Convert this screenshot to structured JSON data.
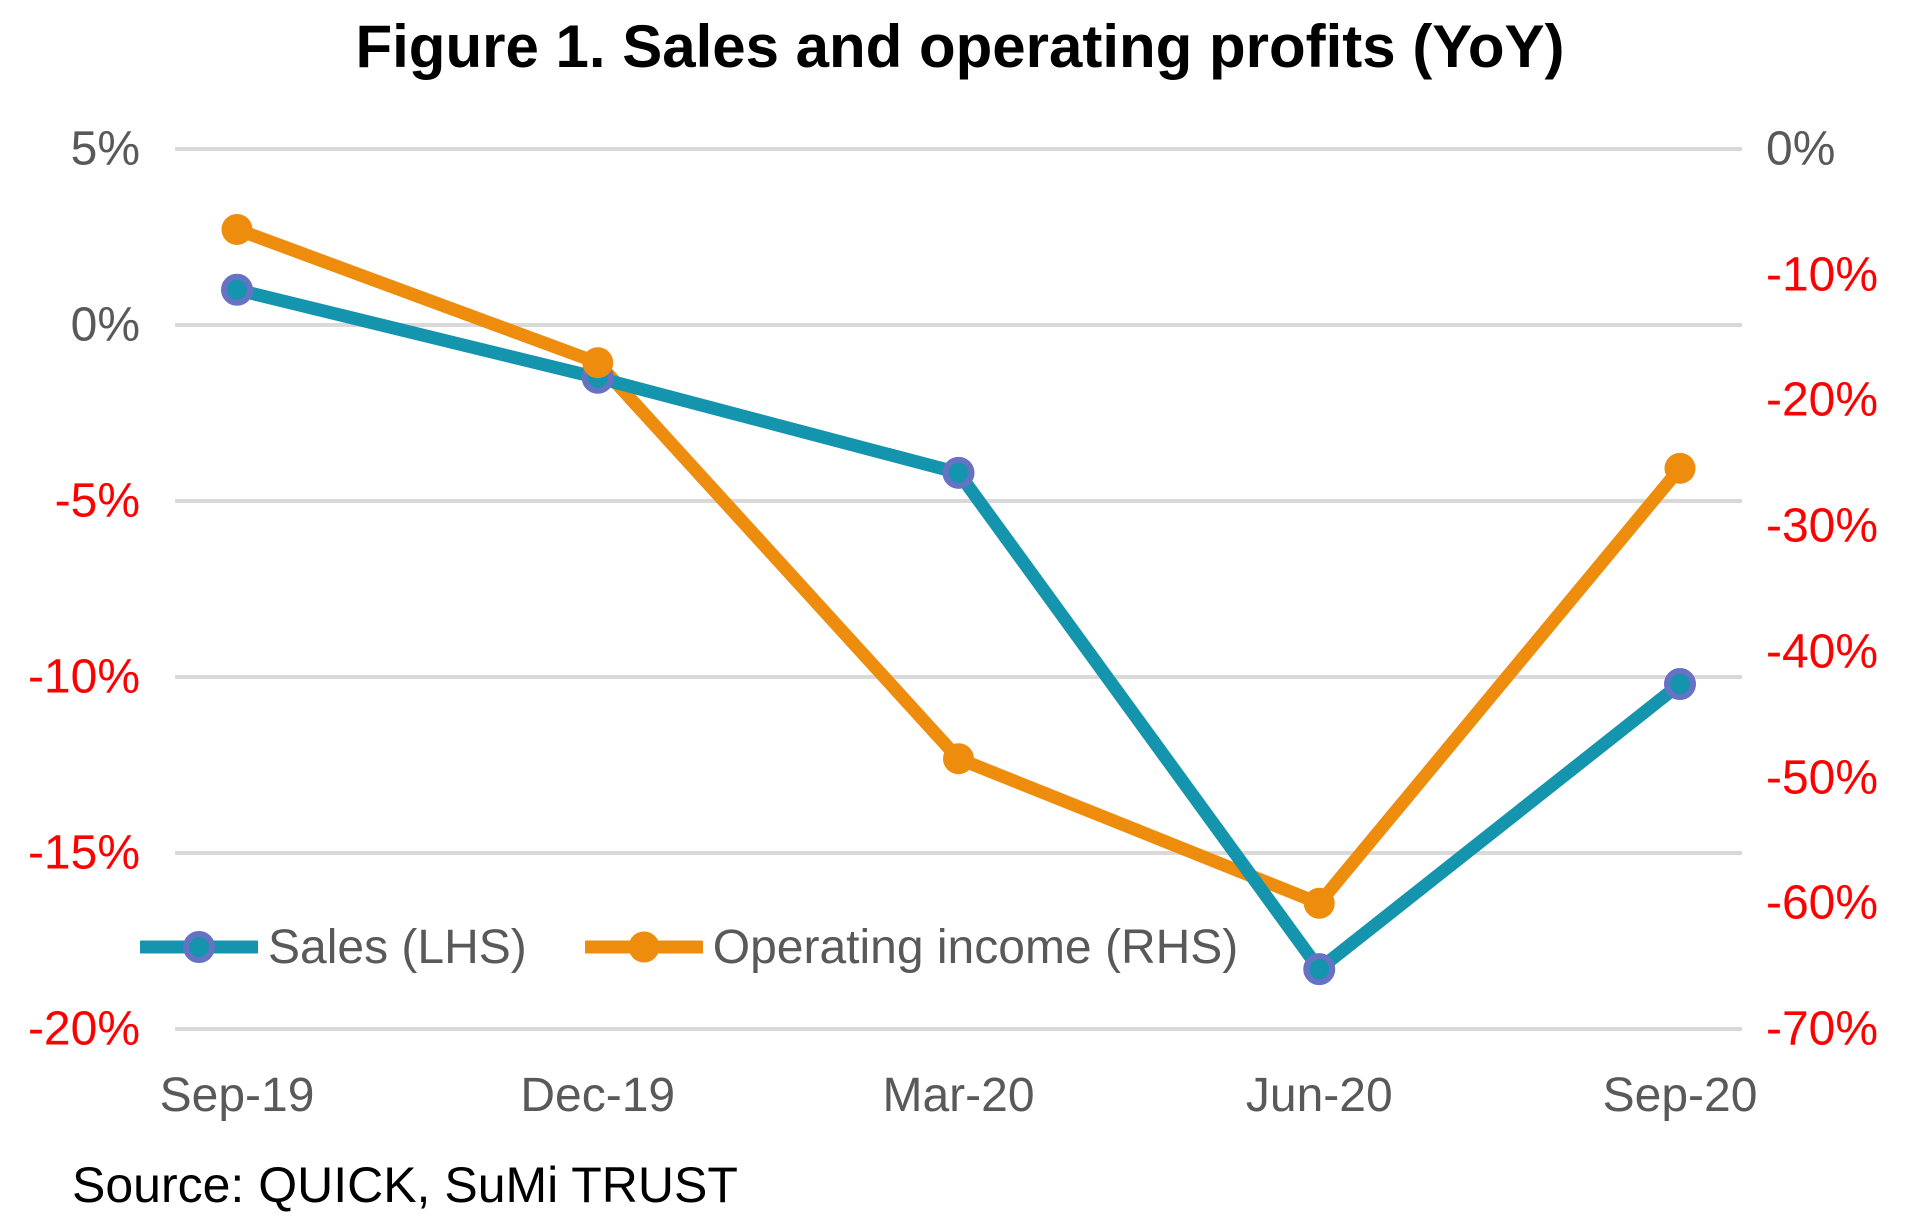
{
  "title": "Figure 1. Sales and operating profits (YoY)",
  "source_note": "Source: QUICK, SuMi TRUST",
  "legend": {
    "items": [
      {
        "label": "Sales (LHS)",
        "series_key": "sales"
      },
      {
        "label": "Operating income (RHS)",
        "series_key": "operating_income"
      }
    ]
  },
  "colors": {
    "sales_line": "#1494AD",
    "sales_marker_fill": "#1494AD",
    "sales_marker_ring": "#6673C5",
    "operating_income_line": "#EE8D0D",
    "operating_income_marker": "#EE8D0D",
    "positive_tick_label": "#595959",
    "negative_tick_label": "#FF0000",
    "gridline": "#D9D9D9",
    "title_text": "#000000",
    "source_text": "#000000"
  },
  "chart_data": {
    "type": "line",
    "title": "Figure 1. Sales and operating profits (YoY)",
    "categories": [
      "Sep-19",
      "Dec-19",
      "Mar-20",
      "Jun-20",
      "Sep-20"
    ],
    "series": [
      {
        "name": "Sales (LHS)",
        "axis": "left",
        "values": [
          1.0,
          -1.5,
          -4.2,
          -18.3,
          -10.2
        ]
      },
      {
        "name": "Operating income (RHS)",
        "axis": "right",
        "values": [
          -6.4,
          -17.0,
          -48.5,
          -60.0,
          -25.4
        ]
      }
    ],
    "left_axis": {
      "max": 5,
      "min": -20,
      "tick_step": 5,
      "tick_labels": [
        "5%",
        "0%",
        "-5%",
        "-10%",
        "-15%",
        "-20%"
      ]
    },
    "right_axis": {
      "max": 0,
      "min": -70,
      "tick_step": 10,
      "tick_labels": [
        "0%",
        "-10%",
        "-20%",
        "-30%",
        "-40%",
        "-50%",
        "-60%",
        "-70%"
      ]
    },
    "grid": "horizontal-only",
    "legend_position": "inside-bottom-left",
    "xlabel": "",
    "ylabel": ""
  }
}
